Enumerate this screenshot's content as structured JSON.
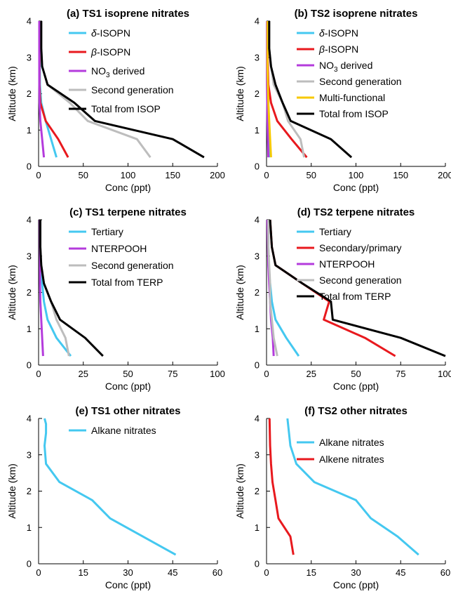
{
  "chart_data": [
    {
      "type": "line",
      "title": "(a) TS1 isoprene nitrates",
      "xlabel": "Conc (ppt)",
      "ylabel": "Altitude (km)",
      "xlim": [
        0,
        200
      ],
      "ylim": [
        0,
        4
      ],
      "xticks": [
        "0",
        "50",
        "100",
        "150",
        "200"
      ],
      "yticks": [
        "0",
        "1",
        "2",
        "3",
        "4"
      ],
      "legend": "top-right",
      "series": [
        {
          "name": "δ-ISOPN",
          "color": "#44c8f0",
          "x": [
            20,
            14,
            8,
            3,
            1.5,
            1.5,
            1.5,
            1.5
          ],
          "y": [
            0.25,
            0.75,
            1.25,
            1.75,
            2.25,
            2.75,
            3.25,
            4
          ]
        },
        {
          "name": "β-ISOPN",
          "color": "#e8191e",
          "x": [
            33,
            22,
            8,
            2,
            1,
            1,
            1,
            1
          ],
          "y": [
            0.25,
            0.75,
            1.25,
            1.75,
            2.25,
            2.75,
            3.25,
            4
          ]
        },
        {
          "name": "NO3 derived",
          "color": "#b43bdc",
          "x": [
            6,
            4,
            2,
            1,
            0.8,
            0.8,
            0.8,
            0.8
          ],
          "y": [
            0.25,
            0.75,
            1.25,
            1.75,
            2.25,
            2.75,
            3.25,
            4
          ]
        },
        {
          "name": "Second generation",
          "color": "#bdbdbd",
          "x": [
            125,
            110,
            55,
            35,
            10,
            4,
            3,
            3
          ],
          "y": [
            0.25,
            0.75,
            1.25,
            1.75,
            2.25,
            2.75,
            3.25,
            4
          ]
        },
        {
          "name": "Total from ISOP",
          "color": "#000000",
          "x": [
            185,
            150,
            63,
            40,
            10,
            4,
            3,
            3
          ],
          "y": [
            0.25,
            0.75,
            1.25,
            1.75,
            2.25,
            2.75,
            3.25,
            4
          ]
        }
      ]
    },
    {
      "type": "line",
      "title": "(b) TS2 isoprene nitrates",
      "xlabel": "Conc (ppt)",
      "ylabel": "Altitude (km)",
      "xlim": [
        0,
        200
      ],
      "ylim": [
        0,
        4
      ],
      "xticks": [
        "0",
        "50",
        "100",
        "150",
        "200"
      ],
      "yticks": [
        "0",
        "1",
        "2",
        "3",
        "4"
      ],
      "legend": "top-right",
      "series": [
        {
          "name": "δ-ISOPN",
          "color": "#44c8f0",
          "x": [
            3,
            2.5,
            2,
            1.5,
            1,
            1,
            1,
            1
          ],
          "y": [
            0.25,
            0.75,
            1.25,
            1.75,
            2.25,
            2.75,
            3.25,
            4
          ]
        },
        {
          "name": "β-ISOPN",
          "color": "#e8191e",
          "x": [
            45,
            28,
            12,
            5,
            2,
            1.5,
            1,
            1
          ],
          "y": [
            0.25,
            0.75,
            1.25,
            1.75,
            2.25,
            2.75,
            3.25,
            4
          ]
        },
        {
          "name": "NO3 derived",
          "color": "#b43bdc",
          "x": [
            2,
            1.5,
            1,
            0.8,
            0.5,
            0.5,
            0.5,
            0.5
          ],
          "y": [
            0.25,
            0.75,
            1.25,
            1.75,
            2.25,
            2.75,
            3.25,
            4
          ]
        },
        {
          "name": "Second generation",
          "color": "#bdbdbd",
          "x": [
            42,
            38,
            24,
            18,
            8,
            5,
            3,
            3
          ],
          "y": [
            0.25,
            0.75,
            1.25,
            1.75,
            2.25,
            2.75,
            3.25,
            4
          ]
        },
        {
          "name": "Multi-functional",
          "color": "#f7c800",
          "x": [
            5,
            4,
            3,
            2,
            1.5,
            1,
            1,
            1
          ],
          "y": [
            0.25,
            0.75,
            1.25,
            1.75,
            2.25,
            2.75,
            3.25,
            4
          ]
        },
        {
          "name": "Total from ISOP",
          "color": "#000000",
          "x": [
            95,
            72,
            27,
            18,
            10,
            5,
            3,
            3
          ],
          "y": [
            0.25,
            0.75,
            1.25,
            1.75,
            2.25,
            2.75,
            3.25,
            4
          ]
        }
      ]
    },
    {
      "type": "line",
      "title": "(c) TS1 terpene nitrates",
      "xlabel": "Conc (ppt)",
      "ylabel": "Altitude (km)",
      "xlim": [
        0,
        100
      ],
      "ylim": [
        0,
        4
      ],
      "xticks": [
        "0",
        "25",
        "50",
        "75",
        "100"
      ],
      "yticks": [
        "0",
        "1",
        "2",
        "3",
        "4"
      ],
      "legend": "top-right",
      "series": [
        {
          "name": "Tertiary",
          "color": "#44c8f0",
          "x": [
            18,
            10,
            5,
            3,
            2,
            1,
            1,
            1
          ],
          "y": [
            0.25,
            0.75,
            1.25,
            1.75,
            2.25,
            2.75,
            3.25,
            4
          ]
        },
        {
          "name": "NTERPOOH",
          "color": "#b43bdc",
          "x": [
            2.5,
            2,
            1.5,
            1,
            0.8,
            0.8,
            0.8,
            0.8
          ],
          "y": [
            0.25,
            0.75,
            1.25,
            1.75,
            2.25,
            2.75,
            3.25,
            4
          ]
        },
        {
          "name": "Second generation",
          "color": "#bdbdbd",
          "x": [
            17,
            15,
            10,
            7,
            3,
            1.5,
            1,
            1
          ],
          "y": [
            0.25,
            0.75,
            1.25,
            1.75,
            2.25,
            2.75,
            3.25,
            4
          ]
        },
        {
          "name": "Total from TERP",
          "color": "#000000",
          "x": [
            36,
            26,
            12,
            7,
            3,
            1.5,
            1,
            1
          ],
          "y": [
            0.25,
            0.75,
            1.25,
            1.75,
            2.25,
            2.75,
            3.25,
            4
          ]
        }
      ]
    },
    {
      "type": "line",
      "title": "(d) TS2 terpene nitrates",
      "xlabel": "Conc (ppt)",
      "ylabel": "Altitude (km)",
      "xlim": [
        0,
        100
      ],
      "ylim": [
        0,
        4
      ],
      "xticks": [
        "0",
        "25",
        "50",
        "75",
        "100"
      ],
      "yticks": [
        "0",
        "1",
        "2",
        "3",
        "4"
      ],
      "legend": "top-right",
      "series": [
        {
          "name": "Tertiary",
          "color": "#44c8f0",
          "x": [
            18,
            11,
            5,
            3,
            2,
            1,
            1,
            1
          ],
          "y": [
            0.25,
            0.75,
            1.25,
            1.75,
            2.25,
            2.75,
            3.25,
            4
          ]
        },
        {
          "name": "Secondary/primary",
          "color": "#e8191e",
          "x": [
            72,
            55,
            32,
            35,
            20,
            5,
            3,
            2
          ],
          "y": [
            0.25,
            0.75,
            1.25,
            1.75,
            2.25,
            2.75,
            3.25,
            4
          ]
        },
        {
          "name": "NTERPOOH",
          "color": "#b43bdc",
          "x": [
            4,
            3.5,
            2.5,
            2,
            1.5,
            1,
            0.8,
            0.5
          ],
          "y": [
            0.25,
            0.75,
            1.25,
            1.75,
            2.25,
            2.75,
            3.25,
            4
          ]
        },
        {
          "name": "Second generation",
          "color": "#bdbdbd",
          "x": [
            6,
            4,
            3,
            2,
            2,
            1.5,
            1,
            1
          ],
          "y": [
            0.25,
            0.75,
            1.25,
            1.75,
            2.25,
            2.75,
            3.25,
            4
          ]
        },
        {
          "name": "Total from TERP",
          "color": "#000000",
          "x": [
            100,
            75,
            37,
            36,
            20,
            5,
            3,
            2
          ],
          "y": [
            0.25,
            0.75,
            1.25,
            1.75,
            2.25,
            2.75,
            3.25,
            4
          ]
        }
      ]
    },
    {
      "type": "line",
      "title": "(e) TS1 other nitrates",
      "xlabel": "Conc (ppt)",
      "ylabel": "Altitude (km)",
      "xlim": [
        0,
        60
      ],
      "ylim": [
        0,
        4
      ],
      "xticks": [
        "0",
        "15",
        "30",
        "45",
        "60"
      ],
      "yticks": [
        "0",
        "1",
        "2",
        "3",
        "4"
      ],
      "legend": "top-right",
      "series": [
        {
          "name": "Alkane nitrates",
          "color": "#44c8f0",
          "x": [
            46,
            35,
            24,
            18,
            7,
            2.5,
            2,
            2.5,
            2.5,
            2
          ],
          "y": [
            0.25,
            0.75,
            1.25,
            1.75,
            2.25,
            2.75,
            3.25,
            3.6,
            3.85,
            4
          ]
        }
      ]
    },
    {
      "type": "line",
      "title": "(f) TS2 other nitrates",
      "xlabel": "Conc (ppt)",
      "ylabel": "Altitude (km)",
      "xlim": [
        0,
        60
      ],
      "ylim": [
        0,
        4
      ],
      "xticks": [
        "0",
        "15",
        "30",
        "45",
        "60"
      ],
      "yticks": [
        "0",
        "1",
        "2",
        "3",
        "4"
      ],
      "legend": "right",
      "series": [
        {
          "name": "Alkane nitrates",
          "color": "#44c8f0",
          "x": [
            51,
            44,
            35,
            30,
            16,
            10,
            8,
            7
          ],
          "y": [
            0.25,
            0.75,
            1.25,
            1.75,
            2.25,
            2.75,
            3.25,
            4
          ]
        },
        {
          "name": "Alkene nitrates",
          "color": "#e8191e",
          "x": [
            9,
            8,
            4,
            3,
            2,
            1.5,
            1.2,
            1
          ],
          "y": [
            0.25,
            0.75,
            1.25,
            1.75,
            2.25,
            2.75,
            3.25,
            4
          ]
        }
      ]
    }
  ]
}
